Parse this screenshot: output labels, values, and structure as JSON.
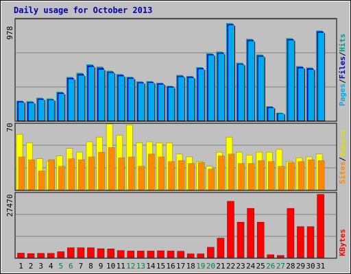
{
  "chart_data": [
    {
      "type": "bar",
      "title": "Daily usage for October 2013",
      "panel": "top",
      "ymax_label": "978",
      "ylim": [
        0,
        978
      ],
      "series": [
        {
          "name": "Hits",
          "color": "#009999",
          "values": [
            192,
            187,
            220,
            213,
            278,
            420,
            460,
            542,
            520,
            480,
            448,
            422,
            378,
            380,
            365,
            335,
            440,
            430,
            515,
            648,
            665,
            940,
            558,
            788,
            637,
            138,
            75,
            795,
            525,
            512,
            868
          ]
        },
        {
          "name": "Files",
          "color": "#0000cc",
          "values": [
            184,
            178,
            210,
            205,
            268,
            410,
            447,
            530,
            505,
            470,
            438,
            413,
            368,
            372,
            357,
            327,
            430,
            421,
            505,
            640,
            655,
            930,
            548,
            776,
            627,
            130,
            70,
            785,
            515,
            502,
            858
          ]
        },
        {
          "name": "Pages",
          "color": "#00aaee",
          "values": [
            176,
            170,
            202,
            197,
            258,
            400,
            435,
            518,
            492,
            460,
            428,
            404,
            360,
            364,
            348,
            318,
            420,
            412,
            495,
            630,
            645,
            920,
            540,
            765,
            617,
            122,
            66,
            775,
            505,
            492,
            848
          ]
        }
      ],
      "legend_labels": [
        "Hits",
        "/",
        "Files",
        "/",
        "Pages"
      ]
    },
    {
      "type": "bar",
      "panel": "middle",
      "ymax_label": "70",
      "ylim": [
        0,
        70
      ],
      "series": [
        {
          "name": "Visits",
          "color": "#ffff00",
          "values": [
            59,
            50,
            33,
            30,
            36,
            44,
            40,
            51,
            56,
            70,
            58,
            69,
            50,
            51,
            50,
            50,
            38,
            35,
            30,
            25,
            40,
            56,
            40,
            37,
            40,
            40,
            43,
            30,
            34,
            35,
            38
          ]
        },
        {
          "name": "Sites",
          "color": "#ff8800",
          "values": [
            35,
            32,
            20,
            32,
            25,
            33,
            32,
            35,
            40,
            45,
            34,
            35,
            25,
            38,
            35,
            30,
            31,
            28,
            29,
            22,
            36,
            38,
            28,
            28,
            31,
            30,
            25,
            29,
            30,
            32,
            31
          ]
        }
      ],
      "legend_labels": [
        "Visits",
        "/",
        "Sites"
      ]
    },
    {
      "type": "bar",
      "panel": "bottom",
      "ymax_label": "27470",
      "ylim": [
        0,
        27470
      ],
      "series": [
        {
          "name": "KBytes",
          "color": "#ff0000",
          "values": [
            1900,
            1700,
            1800,
            1800,
            2500,
            4200,
            4200,
            4200,
            3800,
            3700,
            3000,
            2800,
            2800,
            2800,
            2900,
            2800,
            2700,
            1600,
            1600,
            4400,
            8300,
            24000,
            15100,
            21000,
            15100,
            1200,
            900,
            21000,
            13200,
            13200,
            27000
          ]
        }
      ],
      "legend_labels": [
        "KBytes"
      ]
    }
  ],
  "x_labels": [
    "1",
    "2",
    "3",
    "4",
    "5",
    "6",
    "7",
    "8",
    "9",
    "10",
    "11",
    "12",
    "13",
    "14",
    "15",
    "16",
    "17",
    "18",
    "19",
    "20",
    "21",
    "22",
    "23",
    "24",
    "25",
    "26",
    "27",
    "28",
    "29",
    "30",
    "31"
  ],
  "weekend_days": [
    5,
    6,
    12,
    13,
    19,
    20,
    26,
    27
  ],
  "colors": {
    "panel_bg": "#c0c0c0",
    "grid": "#808080",
    "title": "#0000aa",
    "weekend_label": "#008040",
    "weekday_label": "#000000",
    "bar_shadow": "#000000"
  }
}
